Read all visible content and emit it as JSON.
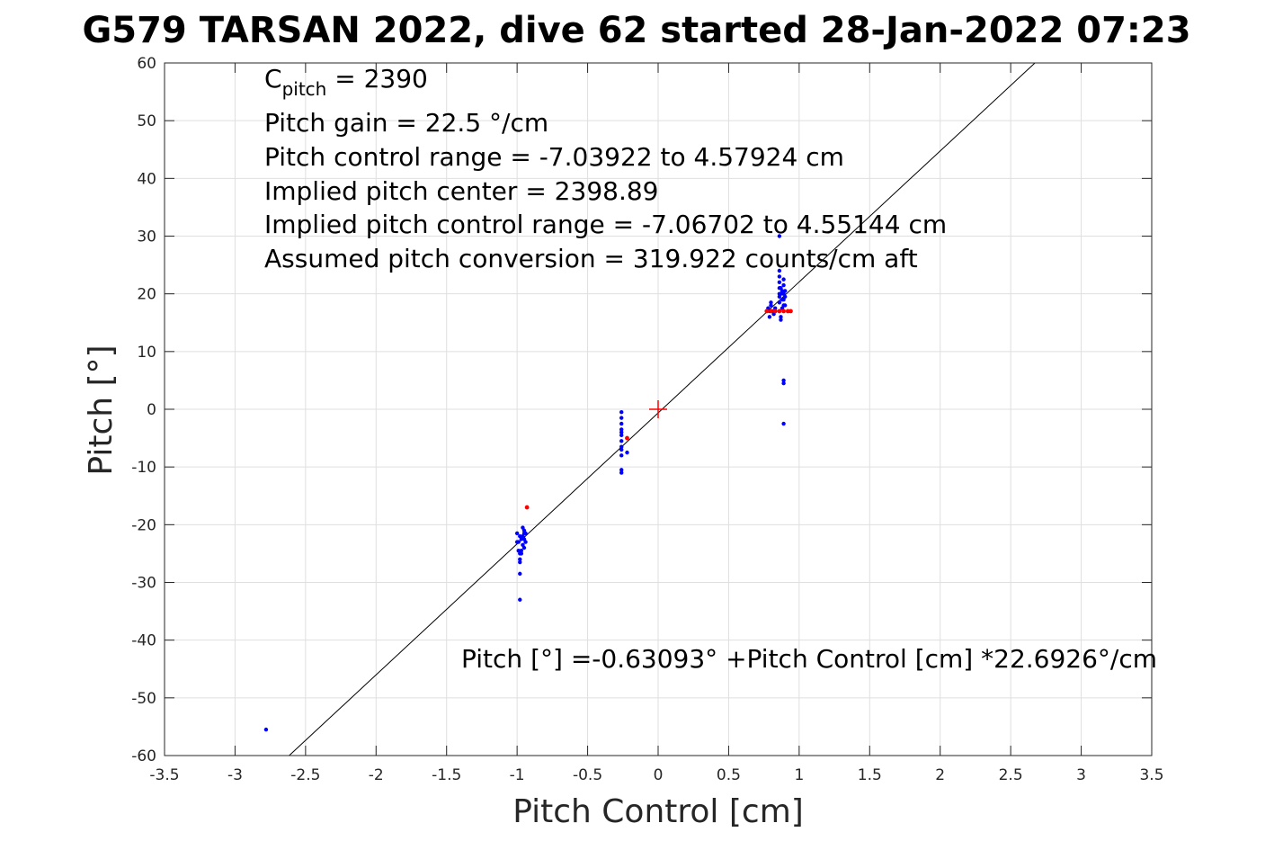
{
  "chart_data": {
    "type": "scatter",
    "title": "G579 TARSAN 2022, dive 62 started 28-Jan-2022 07:23",
    "xlabel": "Pitch Control [cm]",
    "ylabel": "Pitch [°]",
    "xlim": [
      -3.5,
      3.5
    ],
    "ylim": [
      -60,
      60
    ],
    "xticks": [
      -3.5,
      -3,
      -2.5,
      -2,
      -1.5,
      -1,
      -0.5,
      0,
      0.5,
      1,
      1.5,
      2,
      2.5,
      3,
      3.5
    ],
    "xtick_labels": [
      "-3.5",
      "-3",
      "-2.5",
      "-2",
      "-1.5",
      "-1",
      "-0.5",
      "0",
      "0.5",
      "1",
      "1.5",
      "2",
      "2.5",
      "3",
      "3.5"
    ],
    "yticks": [
      -60,
      -50,
      -40,
      -30,
      -20,
      -10,
      0,
      10,
      20,
      30,
      40,
      50,
      60
    ],
    "ytick_labels": [
      "-60",
      "-50",
      "-40",
      "-30",
      "-20",
      "-10",
      "0",
      "10",
      "20",
      "30",
      "40",
      "50",
      "60"
    ],
    "grid": true,
    "colors": {
      "points": "#0000ff",
      "flagged": "#ff0000",
      "center": "#ff0000",
      "fit": "#000000",
      "grid": "#dfdfdf"
    },
    "annotations": {
      "c_pitch_main": "C",
      "c_pitch_sub": "pitch",
      "c_pitch_value": " = 2390",
      "lines": [
        "Pitch gain = 22.5 °/cm",
        "Pitch control range = -7.03922 to 4.57924 cm",
        "Implied pitch center = 2398.89",
        "Implied pitch control range = -7.06702 to 4.55144 cm",
        "Assumed pitch conversion = 319.922 counts/cm aft"
      ],
      "fit_equation": "Pitch [°] =-0.63093° +Pitch Control [cm] *22.6926°/cm"
    },
    "fit_line": {
      "intercept": -0.63093,
      "slope": 22.6926
    },
    "center_marker": {
      "x": 0,
      "y": 0
    },
    "series": [
      {
        "role": "observations",
        "x": [
          -2.78,
          -0.98,
          -0.98,
          -0.98,
          -0.98,
          -0.99,
          -1.0,
          -0.97,
          -0.96,
          -0.96,
          -0.95,
          -0.95,
          -0.94,
          -0.94,
          -0.95,
          -0.97,
          -0.98,
          -0.99,
          -1.0,
          -0.96,
          -0.95,
          -0.97,
          -0.98,
          -0.26,
          -0.26,
          -0.26,
          -0.26,
          -0.26,
          -0.26,
          -0.26,
          -0.26,
          -0.26,
          -0.26,
          -0.26,
          -0.26,
          -0.22,
          0.78,
          0.79,
          0.8,
          0.81,
          0.82,
          0.83,
          0.8,
          0.79,
          0.86,
          0.86,
          0.86,
          0.86,
          0.86,
          0.86,
          0.86,
          0.86,
          0.87,
          0.87,
          0.87,
          0.88,
          0.88,
          0.88,
          0.89,
          0.89,
          0.89,
          0.89,
          0.89,
          0.9,
          0.9,
          0.9,
          0.87,
          0.89,
          0.89,
          0.89,
          0.86
        ],
        "y": [
          -55.5,
          -33,
          -28.5,
          -26.5,
          -25,
          -24.5,
          -23,
          -22.5,
          -22,
          -23.5,
          -21.5,
          -22.5,
          -23,
          -21.5,
          -24,
          -25,
          -22,
          -23,
          -21.5,
          -20.5,
          -21,
          -24.5,
          -26,
          -0.5,
          -1.5,
          -2.5,
          -3.5,
          -4.5,
          -5.5,
          -6.5,
          -7,
          -8,
          -10.5,
          -11,
          -4,
          -7.5,
          17.5,
          16,
          18,
          17,
          16.5,
          17.5,
          18.5,
          17,
          30,
          24,
          23,
          22,
          21,
          20,
          19.5,
          18.5,
          20,
          21,
          16,
          17.5,
          19,
          20.5,
          18,
          19,
          20,
          22.5,
          21.5,
          18,
          19.5,
          20.5,
          15.5,
          5,
          4.5,
          -2.5,
          17
        ]
      },
      {
        "role": "flagged",
        "x": [
          -0.93,
          -0.22,
          0.77,
          0.8,
          0.83,
          0.86,
          0.89,
          0.92,
          0.94
        ],
        "y": [
          -17,
          -5,
          17,
          17,
          17,
          17,
          17,
          17,
          17
        ]
      }
    ]
  }
}
